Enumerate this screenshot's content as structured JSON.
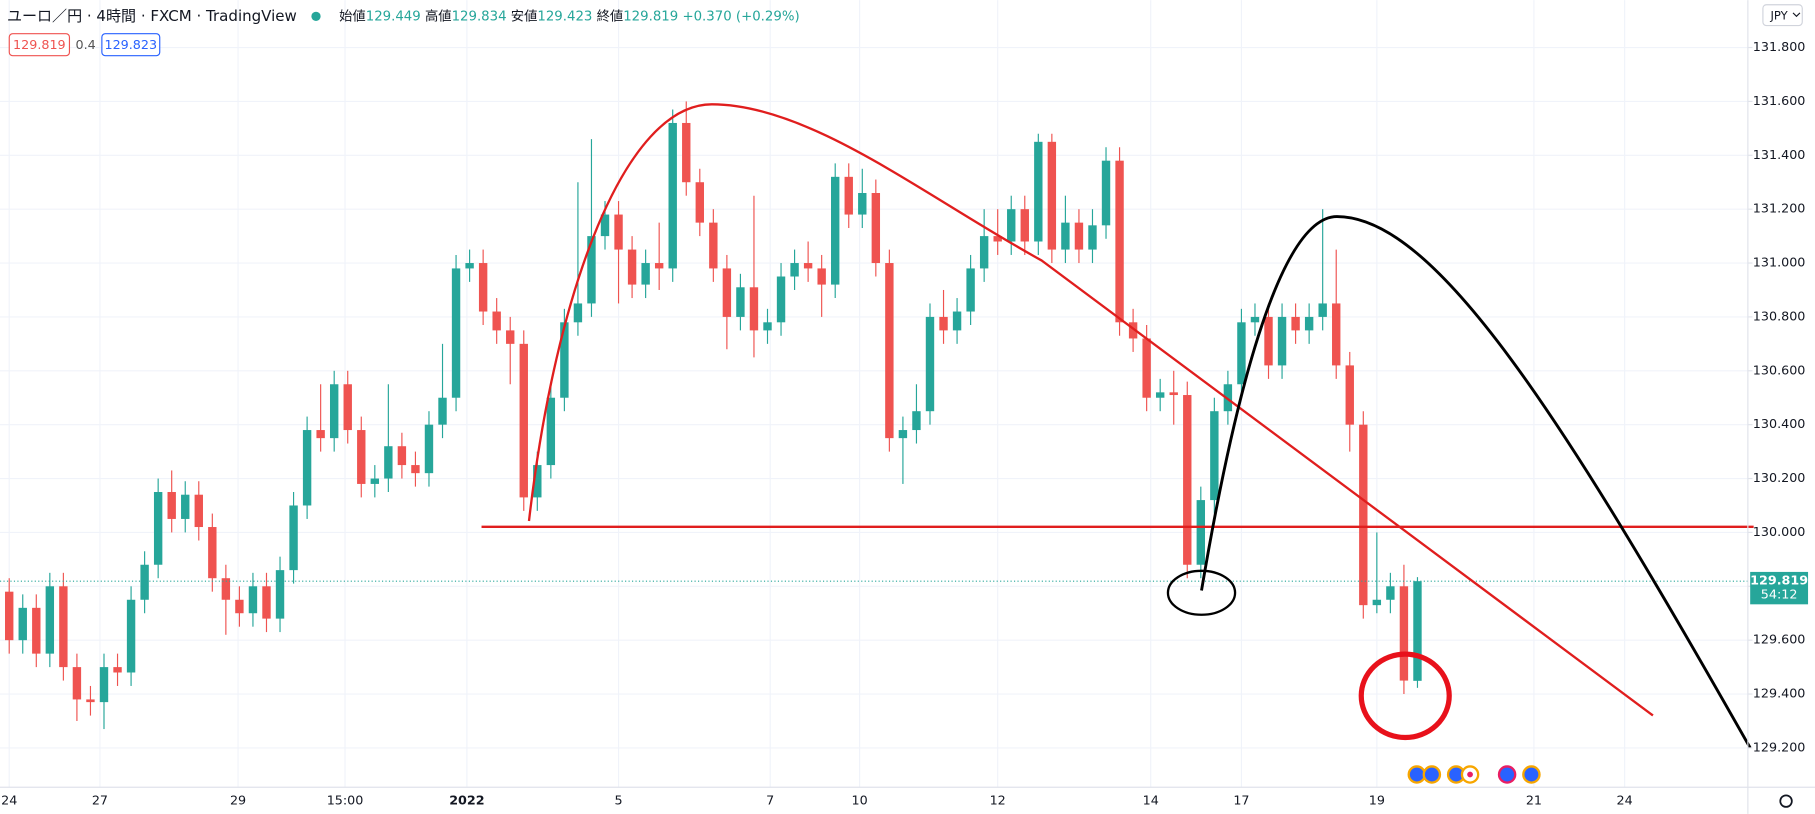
{
  "chart_data": {
    "type": "candlestick",
    "title": "ユーロ／円 · 4時間 · FXCM · TradingView",
    "ohlc_labels": [
      "始値",
      "高値",
      "安値",
      "終値"
    ],
    "change": "+0.370 (+0.29%)",
    "spread": 0.4,
    "ask": 129.823,
    "countdown": "54:12",
    "currency": "JPY",
    "up_color": "#26a69a",
    "down_color": "#ef5350",
    "grid": true,
    "xlim": [
      -0.68,
      128.4
    ],
    "ylim": [
      129.054,
      131.976
    ],
    "yticks": [
      {
        "value": 129.2,
        "label": "129.200"
      },
      {
        "value": 129.4,
        "label": "129.400"
      },
      {
        "value": 129.6,
        "label": "129.600"
      },
      {
        "value": 129.8,
        "label": "129.800"
      },
      {
        "value": 130.0,
        "label": "130.000"
      },
      {
        "value": 130.2,
        "label": "130.200"
      },
      {
        "value": 130.4,
        "label": "130.400"
      },
      {
        "value": 130.6,
        "label": "130.600"
      },
      {
        "value": 130.8,
        "label": "130.800"
      },
      {
        "value": 131.0,
        "label": "131.000"
      },
      {
        "value": 131.2,
        "label": "131.200"
      },
      {
        "value": 131.4,
        "label": "131.400"
      },
      {
        "value": 131.6,
        "label": "131.600"
      },
      {
        "value": 131.8,
        "label": "131.800"
      }
    ],
    "xticks": [
      {
        "value": 0,
        "label": "24"
      },
      {
        "value": 6.7,
        "label": "27"
      },
      {
        "value": 16.9,
        "label": "29"
      },
      {
        "value": 24.8,
        "label": "15:00"
      },
      {
        "value": 33.8,
        "label": "2022"
      },
      {
        "value": 45,
        "label": "5"
      },
      {
        "value": 56.2,
        "label": "7"
      },
      {
        "value": 62.8,
        "label": "10"
      },
      {
        "value": 73,
        "label": "12"
      },
      {
        "value": 84.3,
        "label": "14"
      },
      {
        "value": 91,
        "label": "17"
      },
      {
        "value": 101,
        "label": "19"
      },
      {
        "value": 112.6,
        "label": "21"
      },
      {
        "value": 119.3,
        "label": "24"
      }
    ],
    "open": [
      129.78,
      129.6,
      129.72,
      129.55,
      129.8,
      129.5,
      129.38,
      129.37,
      129.5,
      129.48,
      129.75,
      129.88,
      130.15,
      130.05,
      130.14,
      130.02,
      129.83,
      129.75,
      129.7,
      129.8,
      129.68,
      129.86,
      130.1,
      130.38,
      130.35,
      130.55,
      130.38,
      130.18,
      130.2,
      130.32,
      130.25,
      130.22,
      130.4,
      130.5,
      130.98,
      131.0,
      130.82,
      130.75,
      130.7,
      130.13,
      130.25,
      130.5,
      130.78,
      130.85,
      131.1,
      131.18,
      131.05,
      130.92,
      131.0,
      130.98,
      131.52,
      131.3,
      131.15,
      130.98,
      130.8,
      130.91,
      130.75,
      130.78,
      130.95,
      131.0,
      130.98,
      130.92,
      131.32,
      131.18,
      131.26,
      131.0,
      130.35,
      130.38,
      130.45,
      130.8,
      130.75,
      130.82,
      130.98,
      131.1,
      131.08,
      131.2,
      131.08,
      131.45,
      131.05,
      131.15,
      131.05,
      131.14,
      131.38,
      130.78,
      130.72,
      130.5,
      130.52,
      130.51,
      129.88,
      130.12,
      130.45,
      130.55,
      130.78,
      130.8,
      130.62,
      130.8,
      130.75,
      130.8,
      130.85,
      130.62,
      130.4,
      129.73,
      129.75,
      129.8,
      129.449
    ],
    "high": [
      129.83,
      129.77,
      129.77,
      129.85,
      129.85,
      129.55,
      129.43,
      129.55,
      129.55,
      129.8,
      129.93,
      130.2,
      130.23,
      130.19,
      130.19,
      130.07,
      129.88,
      129.8,
      129.85,
      129.85,
      129.91,
      130.15,
      130.43,
      130.55,
      130.6,
      130.6,
      130.43,
      130.25,
      130.55,
      130.37,
      130.3,
      130.45,
      130.7,
      131.03,
      131.05,
      131.05,
      130.87,
      130.8,
      130.75,
      130.3,
      130.55,
      130.83,
      131.3,
      131.46,
      131.23,
      131.23,
      131.1,
      131.05,
      131.15,
      131.57,
      131.6,
      131.35,
      131.2,
      131.03,
      130.96,
      131.25,
      130.83,
      131.0,
      131.05,
      131.08,
      131.03,
      131.37,
      131.37,
      131.35,
      131.31,
      131.05,
      130.43,
      130.55,
      130.85,
      130.9,
      130.87,
      131.03,
      131.2,
      131.2,
      131.25,
      131.25,
      131.48,
      131.48,
      131.25,
      131.2,
      131.2,
      131.43,
      131.43,
      130.83,
      130.77,
      130.57,
      130.6,
      130.56,
      130.17,
      130.5,
      130.6,
      130.83,
      130.85,
      130.85,
      130.85,
      130.85,
      130.85,
      131.2,
      131.05,
      130.67,
      130.45,
      130.0,
      129.85,
      129.88,
      129.834
    ],
    "low": [
      129.55,
      129.55,
      129.5,
      129.5,
      129.45,
      129.3,
      129.32,
      129.27,
      129.43,
      129.43,
      129.7,
      129.83,
      130.0,
      130.0,
      129.97,
      129.78,
      129.62,
      129.65,
      129.65,
      129.63,
      129.63,
      129.81,
      130.05,
      130.3,
      130.3,
      130.33,
      130.13,
      130.13,
      130.15,
      130.2,
      130.17,
      130.17,
      130.35,
      130.45,
      130.93,
      130.77,
      130.7,
      130.55,
      130.08,
      130.08,
      130.2,
      130.45,
      130.73,
      130.8,
      131.05,
      130.85,
      130.87,
      130.87,
      130.9,
      130.93,
      131.25,
      131.1,
      130.93,
      130.68,
      130.75,
      130.65,
      130.7,
      130.73,
      130.9,
      130.93,
      130.8,
      130.87,
      131.13,
      131.13,
      130.95,
      130.3,
      130.18,
      130.33,
      130.4,
      130.7,
      130.7,
      130.77,
      130.93,
      131.03,
      131.03,
      131.03,
      131.03,
      131.0,
      131.0,
      131.0,
      131.0,
      131.09,
      130.73,
      130.67,
      130.45,
      130.45,
      130.4,
      129.83,
      129.83,
      130.07,
      130.4,
      130.5,
      130.73,
      130.57,
      130.57,
      130.7,
      130.7,
      130.75,
      130.57,
      130.3,
      129.68,
      129.7,
      129.7,
      129.4,
      129.423
    ],
    "close": [
      129.6,
      129.72,
      129.55,
      129.8,
      129.5,
      129.38,
      129.37,
      129.5,
      129.48,
      129.75,
      129.88,
      130.15,
      130.05,
      130.14,
      130.02,
      129.83,
      129.75,
      129.7,
      129.8,
      129.68,
      129.86,
      130.1,
      130.38,
      130.35,
      130.55,
      130.38,
      130.18,
      130.2,
      130.32,
      130.25,
      130.22,
      130.4,
      130.5,
      130.98,
      131.0,
      130.82,
      130.75,
      130.7,
      130.13,
      130.25,
      130.5,
      130.78,
      130.85,
      131.1,
      131.18,
      131.05,
      130.92,
      131.0,
      130.98,
      131.52,
      131.3,
      131.15,
      130.98,
      130.8,
      130.91,
      130.75,
      130.78,
      130.95,
      131.0,
      130.98,
      130.92,
      131.32,
      131.18,
      131.26,
      131.0,
      130.35,
      130.38,
      130.45,
      130.8,
      130.75,
      130.82,
      130.98,
      131.1,
      131.08,
      131.2,
      131.08,
      131.45,
      131.05,
      131.15,
      131.05,
      131.14,
      131.38,
      130.78,
      130.72,
      130.5,
      130.52,
      130.51,
      129.88,
      130.12,
      130.45,
      130.55,
      130.78,
      130.8,
      130.62,
      130.8,
      130.75,
      130.8,
      130.85,
      130.62,
      130.4,
      129.73,
      129.75,
      129.8,
      129.45,
      129.819
    ]
  }
}
